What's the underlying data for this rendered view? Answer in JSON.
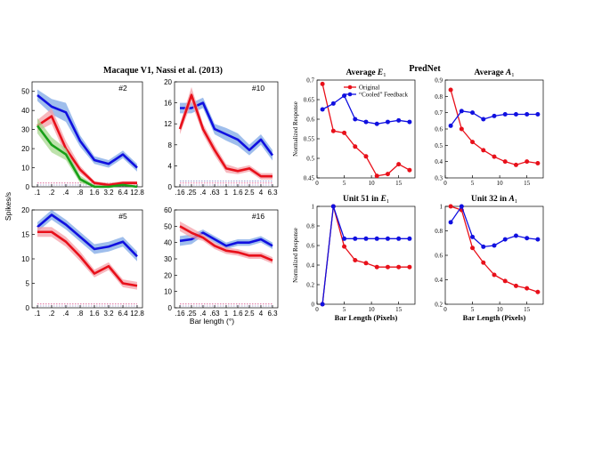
{
  "left": {
    "title": "Macaque V1, Nassi et al. (2013)",
    "ylabel": "Spikes/s",
    "xlabel": "Bar length (°)",
    "colors": {
      "blue": "#1010e0",
      "red": "#e8101a",
      "green": "#18a018",
      "blue_band": "#7fa8e6",
      "red_band": "#f4a0a8",
      "green_band": "#a8d890"
    },
    "panels": [
      {
        "id": "#2",
        "x_tick_labels": [
          ".1",
          ".2",
          ".4",
          ".8",
          "1.6",
          "3.2",
          "6.4",
          "12.8"
        ],
        "yticks": [
          0,
          10,
          20,
          30,
          40,
          50
        ],
        "ylim": [
          0,
          55
        ],
        "series": [
          {
            "name": "",
            "color": "blue",
            "values": [
              48,
              42,
              39,
              24,
              14,
              12,
              17,
              10
            ],
            "spread": [
              3,
              4,
              5,
              3,
              2,
              2,
              2,
              2
            ]
          },
          {
            "name": "",
            "color": "red",
            "values": [
              32,
              37,
              20,
              9,
              2,
              1,
              2,
              2
            ],
            "spread": [
              3,
              4,
              4,
              2,
              1,
              1,
              1,
              1
            ]
          },
          {
            "name": "",
            "color": "green",
            "values": [
              32,
              22,
              17,
              4,
              0,
              0,
              1,
              0
            ],
            "spread": [
              4,
              4,
              3,
              2,
              1,
              0.5,
              0.5,
              0.5
            ]
          }
        ]
      },
      {
        "id": "#10",
        "x_tick_labels": [
          ".16",
          ".25",
          ".4",
          ".63",
          "1",
          "1.6",
          "2.5",
          "4",
          "6.3"
        ],
        "yticks": [
          0,
          4,
          8,
          12,
          16,
          20
        ],
        "ylim": [
          0,
          20
        ],
        "series": [
          {
            "name": "",
            "color": "blue",
            "values": [
              15,
              15,
              16,
              11,
              10,
              9,
              7,
              9,
              6
            ],
            "spread": [
              1,
              1,
              1,
              1,
              1.2,
              1.2,
              1,
              1,
              1
            ]
          },
          {
            "name": "",
            "color": "red",
            "values": [
              11,
              17.5,
              11,
              7,
              3.5,
              3,
              3.5,
              2,
              2
            ],
            "spread": [
              1,
              1.5,
              1,
              1,
              0.8,
              0.6,
              0.6,
              0.6,
              0.6
            ]
          }
        ]
      },
      {
        "id": "#5",
        "x_tick_labels": [
          ".1",
          ".2",
          ".4",
          ".8",
          "1.6",
          "3.2",
          "6.4",
          "12.8"
        ],
        "yticks": [
          0,
          5,
          10,
          15,
          20
        ],
        "ylim": [
          0,
          20
        ],
        "series": [
          {
            "name": "",
            "color": "blue",
            "values": [
              16.5,
              19,
              17,
              14.5,
              12,
              12.5,
              13.5,
              10.5
            ],
            "spread": [
              1,
              1,
              1,
              1,
              1,
              1,
              1,
              1
            ]
          },
          {
            "name": "",
            "color": "red",
            "values": [
              15.5,
              15.5,
              13.5,
              10.5,
              7,
              8.5,
              5,
              4.5
            ],
            "spread": [
              1,
              1,
              1,
              1,
              0.8,
              0.8,
              0.8,
              0.8
            ]
          }
        ]
      },
      {
        "id": "#16",
        "x_tick_labels": [
          ".16",
          ".25",
          ".4",
          ".63",
          "1",
          "1.6",
          "2.5",
          "4",
          "6.3"
        ],
        "yticks": [
          0,
          10,
          20,
          30,
          40,
          50,
          60
        ],
        "ylim": [
          0,
          60
        ],
        "series": [
          {
            "name": "",
            "color": "blue",
            "values": [
              41,
              42,
              46,
              42,
              38,
              40,
              40,
              42,
              38
            ],
            "spread": [
              3,
              3,
              2,
              2,
              2,
              2,
              2,
              2,
              2
            ]
          },
          {
            "name": "",
            "color": "red",
            "values": [
              50,
              46,
              43,
              38,
              35,
              34,
              32,
              32,
              29
            ],
            "spread": [
              3,
              3,
              2,
              2,
              2,
              2,
              2,
              2,
              2
            ]
          }
        ]
      }
    ]
  },
  "right": {
    "title": "PredNet",
    "xlabel": "Bar Length (Pixels)",
    "ylabel": "Normalized Response",
    "colors": {
      "original": "#e8101a",
      "cooled": "#1010e0"
    },
    "legend": {
      "original": "Original",
      "cooled": "“Cooled” Feedback",
      "placement": "top-right"
    },
    "x_values": [
      1,
      3,
      5,
      7,
      9,
      11,
      13,
      15,
      17
    ],
    "xticks": [
      0,
      5,
      10,
      15
    ],
    "panels": [
      {
        "title_text": "Average ",
        "title_sym": "E",
        "title_sub": "1",
        "ylim": [
          0.45,
          0.7
        ],
        "yticks": [
          0.45,
          0.5,
          0.55,
          0.6,
          0.65,
          0.7
        ],
        "ytick_labels": [
          "0.45",
          "0.5",
          "0.55",
          "0.6",
          "0.65",
          "0.7"
        ],
        "series": [
          {
            "name": "Original",
            "key": "original",
            "values": [
              0.69,
              0.57,
              0.565,
              0.53,
              0.505,
              0.455,
              0.46,
              0.485,
              0.47
            ]
          },
          {
            "name": "“Cooled” Feedback",
            "key": "cooled",
            "values": [
              0.625,
              0.64,
              0.66,
              0.6,
              0.593,
              0.588,
              0.593,
              0.597,
              0.593
            ]
          }
        ]
      },
      {
        "title_text": "Average ",
        "title_sym": "A",
        "title_sub": "1",
        "ylim": [
          0.3,
          0.9
        ],
        "yticks": [
          0.3,
          0.4,
          0.5,
          0.6,
          0.7,
          0.8,
          0.9
        ],
        "ytick_labels": [
          "0.3",
          "0.4",
          "0.5",
          "0.6",
          "0.7",
          "0.8",
          "0.9"
        ],
        "series": [
          {
            "name": "Original",
            "key": "original",
            "values": [
              0.84,
              0.6,
              0.52,
              0.47,
              0.43,
              0.4,
              0.38,
              0.4,
              0.39
            ]
          },
          {
            "name": "“Cooled” Feedback",
            "key": "cooled",
            "values": [
              0.62,
              0.71,
              0.7,
              0.66,
              0.68,
              0.69,
              0.69,
              0.69,
              0.69
            ]
          }
        ]
      },
      {
        "title_text": "Unit 51 in ",
        "title_sym": "E",
        "title_sub": "1",
        "ylim": [
          0,
          1
        ],
        "yticks": [
          0,
          0.2,
          0.4,
          0.6,
          0.8,
          1
        ],
        "ytick_labels": [
          "0",
          "0.2",
          "0.4",
          "0.6",
          "0.8",
          "1"
        ],
        "series": [
          {
            "name": "Original",
            "key": "original",
            "values": [
              0,
              1,
              0.59,
              0.45,
              0.42,
              0.38,
              0.38,
              0.38,
              0.38
            ]
          },
          {
            "name": "“Cooled” Feedback",
            "key": "cooled",
            "values": [
              0,
              1,
              0.67,
              0.67,
              0.67,
              0.67,
              0.67,
              0.67,
              0.67
            ]
          }
        ]
      },
      {
        "title_text": "Unit 32 in ",
        "title_sym": "A",
        "title_sub": "1",
        "ylim": [
          0.2,
          1
        ],
        "yticks": [
          0.2,
          0.4,
          0.6,
          0.8,
          1
        ],
        "ytick_labels": [
          "0.2",
          "0.4",
          "0.6",
          "0.8",
          "1"
        ],
        "series": [
          {
            "name": "Original",
            "key": "original",
            "values": [
              1,
              0.97,
              0.66,
              0.54,
              0.44,
              0.39,
              0.35,
              0.33,
              0.3
            ]
          },
          {
            "name": "“Cooled” Feedback",
            "key": "cooled",
            "values": [
              0.87,
              1,
              0.75,
              0.67,
              0.68,
              0.73,
              0.76,
              0.74,
              0.73
            ]
          }
        ]
      }
    ]
  },
  "chart_data": [
    {
      "type": "line",
      "title": "Macaque V1, Nassi et al. (2013)",
      "panel": "#2",
      "categories": [
        ".1",
        ".2",
        ".4",
        ".8",
        "1.6",
        "3.2",
        "6.4",
        "12.8"
      ],
      "xlabel": "Bar length (°)",
      "ylabel": "Spikes/s",
      "ylim": [
        0,
        55
      ],
      "series": [
        {
          "name": "",
          "values": [
            48,
            42,
            39,
            24,
            14,
            12,
            17,
            10
          ]
        },
        {
          "name": "",
          "values": [
            32,
            37,
            20,
            9,
            2,
            1,
            2,
            2
          ]
        },
        {
          "name": "",
          "values": [
            32,
            22,
            17,
            4,
            0,
            0,
            1,
            0
          ]
        }
      ]
    },
    {
      "type": "line",
      "panel": "#10",
      "categories": [
        ".16",
        ".25",
        ".4",
        ".63",
        "1",
        "1.6",
        "2.5",
        "4",
        "6.3"
      ],
      "ylim": [
        0,
        20
      ],
      "series": [
        {
          "name": "",
          "values": [
            15,
            15,
            16,
            11,
            10,
            9,
            7,
            9,
            6
          ]
        },
        {
          "name": "",
          "values": [
            11,
            17.5,
            11,
            7,
            3.5,
            3,
            3.5,
            2,
            2
          ]
        }
      ]
    },
    {
      "type": "line",
      "panel": "#5",
      "categories": [
        ".1",
        ".2",
        ".4",
        ".8",
        "1.6",
        "3.2",
        "6.4",
        "12.8"
      ],
      "ylim": [
        0,
        20
      ],
      "xlabel": "Bar length (°)",
      "ylabel": "Spikes/s",
      "series": [
        {
          "name": "",
          "values": [
            16.5,
            19,
            17,
            14.5,
            12,
            12.5,
            13.5,
            10.5
          ]
        },
        {
          "name": "",
          "values": [
            15.5,
            15.5,
            13.5,
            10.5,
            7,
            8.5,
            5,
            4.5
          ]
        }
      ]
    },
    {
      "type": "line",
      "panel": "#16",
      "categories": [
        ".16",
        ".25",
        ".4",
        ".63",
        "1",
        "1.6",
        "2.5",
        "4",
        "6.3"
      ],
      "ylim": [
        0,
        60
      ],
      "xlabel": "Bar length (°)",
      "series": [
        {
          "name": "",
          "values": [
            41,
            42,
            46,
            42,
            38,
            40,
            40,
            42,
            38
          ]
        },
        {
          "name": "",
          "values": [
            50,
            46,
            43,
            38,
            35,
            34,
            32,
            32,
            29
          ]
        }
      ]
    },
    {
      "type": "line",
      "title": "Average E1",
      "x": [
        1,
        3,
        5,
        7,
        9,
        11,
        13,
        15,
        17
      ],
      "ylabel": "Normalized Response",
      "ylim": [
        0.45,
        0.7
      ],
      "series": [
        {
          "name": "Original",
          "values": [
            0.69,
            0.57,
            0.565,
            0.53,
            0.505,
            0.455,
            0.46,
            0.485,
            0.47
          ]
        },
        {
          "name": "“Cooled” Feedback",
          "values": [
            0.625,
            0.64,
            0.66,
            0.6,
            0.593,
            0.588,
            0.593,
            0.597,
            0.593
          ]
        }
      ]
    },
    {
      "type": "line",
      "title": "Average A1",
      "x": [
        1,
        3,
        5,
        7,
        9,
        11,
        13,
        15,
        17
      ],
      "ylim": [
        0.3,
        0.9
      ],
      "series": [
        {
          "name": "Original",
          "values": [
            0.84,
            0.6,
            0.52,
            0.47,
            0.43,
            0.4,
            0.38,
            0.4,
            0.39
          ]
        },
        {
          "name": "“Cooled” Feedback",
          "values": [
            0.62,
            0.71,
            0.7,
            0.66,
            0.68,
            0.69,
            0.69,
            0.69,
            0.69
          ]
        }
      ]
    },
    {
      "type": "line",
      "title": "Unit 51 in E1",
      "x": [
        1,
        3,
        5,
        7,
        9,
        11,
        13,
        15,
        17
      ],
      "xlabel": "Bar Length (Pixels)",
      "ylabel": "Normalized Response",
      "ylim": [
        0,
        1
      ],
      "series": [
        {
          "name": "Original",
          "values": [
            0,
            1,
            0.59,
            0.45,
            0.42,
            0.38,
            0.38,
            0.38,
            0.38
          ]
        },
        {
          "name": "“Cooled” Feedback",
          "values": [
            0,
            1,
            0.67,
            0.67,
            0.67,
            0.67,
            0.67,
            0.67,
            0.67
          ]
        }
      ]
    },
    {
      "type": "line",
      "title": "Unit 32 in A1",
      "x": [
        1,
        3,
        5,
        7,
        9,
        11,
        13,
        15,
        17
      ],
      "xlabel": "Bar Length (Pixels)",
      "ylim": [
        0.2,
        1
      ],
      "series": [
        {
          "name": "Original",
          "values": [
            1,
            0.97,
            0.66,
            0.54,
            0.44,
            0.39,
            0.35,
            0.33,
            0.3
          ]
        },
        {
          "name": "“Cooled” Feedback",
          "values": [
            0.87,
            1,
            0.75,
            0.67,
            0.68,
            0.73,
            0.76,
            0.74,
            0.73
          ]
        }
      ]
    }
  ]
}
